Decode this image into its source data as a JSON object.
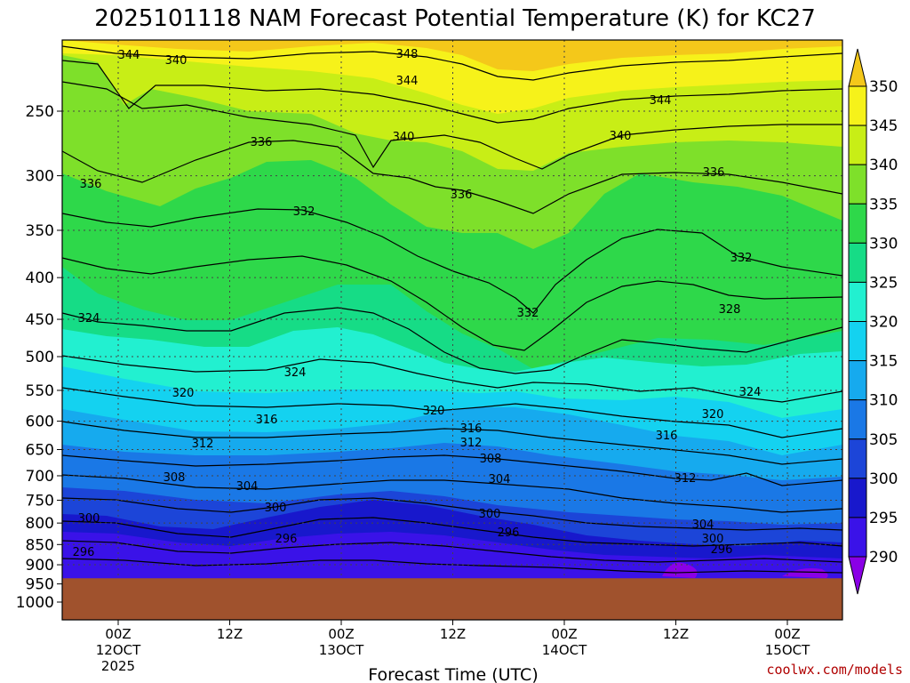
{
  "chart_data": {
    "type": "heatmap",
    "title": "2025101118 NAM Forecast Potential Temperature (K) for KC27",
    "xlabel": "Forecast Time (UTC)",
    "ylabel": "",
    "credit": "coolwx.com/models",
    "y_axis": {
      "scale": "pressure (reversed, log-like)",
      "ticks": [
        250,
        300,
        350,
        400,
        450,
        500,
        550,
        600,
        650,
        700,
        750,
        800,
        850,
        900,
        950,
        1000
      ],
      "range": [
        1000,
        200
      ]
    },
    "x_axis": {
      "ticks": [
        {
          "label": "00Z",
          "sub": "12OCT",
          "sub2": "2025"
        },
        {
          "label": "12Z",
          "sub": "",
          "sub2": ""
        },
        {
          "label": "00Z",
          "sub": "13OCT",
          "sub2": ""
        },
        {
          "label": "12Z",
          "sub": "",
          "sub2": ""
        },
        {
          "label": "00Z",
          "sub": "14OCT",
          "sub2": ""
        },
        {
          "label": "12Z",
          "sub": "",
          "sub2": ""
        },
        {
          "label": "00Z",
          "sub": "15OCT",
          "sub2": ""
        }
      ]
    },
    "colorbar": {
      "levels": [
        290,
        295,
        300,
        305,
        310,
        315,
        320,
        325,
        330,
        335,
        340,
        345,
        350
      ],
      "colors": [
        "#8a00e6",
        "#3a12e8",
        "#1818cc",
        "#1c45d8",
        "#1a78e6",
        "#16aaee",
        "#14d2f0",
        "#22f0d0",
        "#16dc86",
        "#2ed84a",
        "#7ee02a",
        "#c8ee16",
        "#f6f21a",
        "#f4c81a"
      ]
    },
    "contour_labels": [
      {
        "text": "348"
      },
      {
        "text": "344"
      },
      {
        "text": "340"
      },
      {
        "text": "344"
      },
      {
        "text": "344"
      },
      {
        "text": "340"
      },
      {
        "text": "340"
      },
      {
        "text": "336"
      },
      {
        "text": "336"
      },
      {
        "text": "336"
      },
      {
        "text": "336"
      },
      {
        "text": "332"
      },
      {
        "text": "332"
      },
      {
        "text": "332"
      },
      {
        "text": "328"
      },
      {
        "text": "324"
      },
      {
        "text": "324"
      },
      {
        "text": "324"
      },
      {
        "text": "320"
      },
      {
        "text": "320"
      },
      {
        "text": "320"
      },
      {
        "text": "316"
      },
      {
        "text": "316"
      },
      {
        "text": "316"
      },
      {
        "text": "312"
      },
      {
        "text": "312"
      },
      {
        "text": "312"
      },
      {
        "text": "308"
      },
      {
        "text": "308"
      },
      {
        "text": "304"
      },
      {
        "text": "304"
      },
      {
        "text": "304"
      },
      {
        "text": "300"
      },
      {
        "text": "300"
      },
      {
        "text": "300"
      },
      {
        "text": "300"
      },
      {
        "text": "296"
      },
      {
        "text": "296"
      },
      {
        "text": "296"
      },
      {
        "text": "296"
      }
    ],
    "ground": {
      "from_pressure": 935,
      "color": "#a0522d"
    }
  }
}
